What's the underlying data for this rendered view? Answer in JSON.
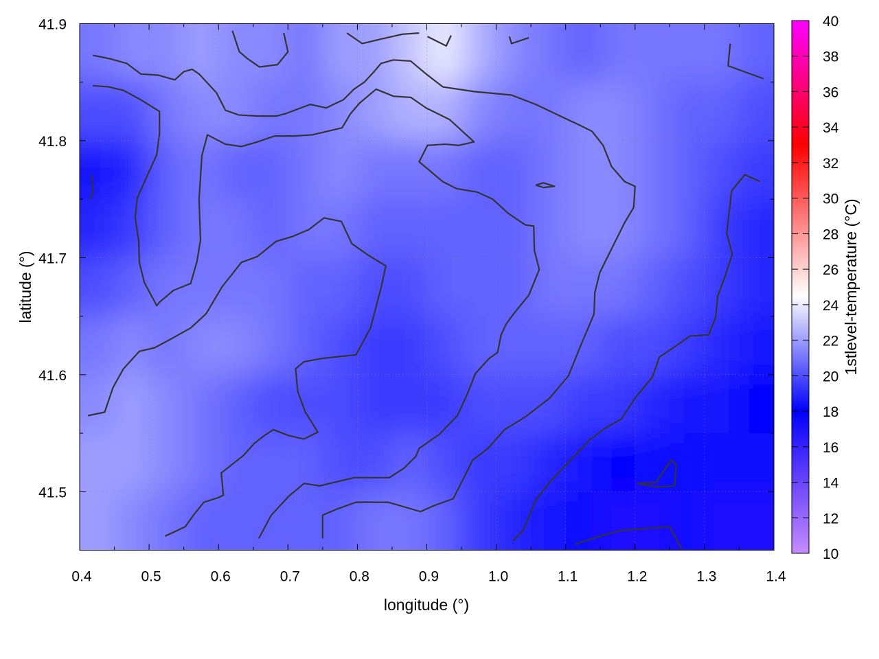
{
  "chart_data": {
    "type": "heatmap",
    "title": "",
    "xlabel": "longitude (°)",
    "ylabel": "latitude (°)",
    "colorbar_label": "1stlevel-temperature (°C)",
    "xlim": [
      0.4,
      1.4
    ],
    "ylim": [
      41.45,
      41.9
    ],
    "zlim": [
      10,
      40
    ],
    "x_ticks": [
      "0.4",
      "0.5",
      "0.6",
      "0.7",
      "0.8",
      "0.9",
      "1.0",
      "1.1",
      "1.2",
      "1.3",
      "1.4"
    ],
    "y_ticks": [
      "41.5",
      "41.6",
      "41.7",
      "41.8",
      "41.9"
    ],
    "colorbar_ticks": [
      "10",
      "12",
      "14",
      "16",
      "18",
      "20",
      "22",
      "24",
      "26",
      "28",
      "30",
      "32",
      "34",
      "36",
      "38",
      "40"
    ],
    "grid": true,
    "palette": [
      {
        "value": 10,
        "color": "#c68cff"
      },
      {
        "value": 14,
        "color": "#6a45ff"
      },
      {
        "value": 18,
        "color": "#0000ff"
      },
      {
        "value": 24.5,
        "color": "#ffffff"
      },
      {
        "value": 33,
        "color": "#ff0000"
      },
      {
        "value": 40,
        "color": "#ff00ff"
      }
    ],
    "grid_lon": [
      0.425,
      0.475,
      0.525,
      0.575,
      0.625,
      0.675,
      0.725,
      0.775,
      0.825,
      0.875,
      0.925,
      0.975,
      1.025,
      1.075,
      1.125,
      1.175,
      1.225,
      1.275,
      1.325,
      1.375
    ],
    "grid_lat": [
      41.875,
      41.825,
      41.775,
      41.725,
      41.675,
      41.625,
      41.575,
      41.525,
      41.475
    ],
    "values": [
      [
        21,
        21.5,
        21.5,
        22,
        21.5,
        21.5,
        21,
        22,
        22,
        23,
        24,
        22.5,
        21.5,
        21,
        20.5,
        21,
        21,
        21,
        21,
        20.5
      ],
      [
        20,
        20,
        21,
        21.5,
        21.5,
        21,
        21,
        21.5,
        22,
        22.5,
        22.5,
        21.5,
        21,
        21,
        21.5,
        21.5,
        21,
        20.5,
        20.5,
        20
      ],
      [
        18.5,
        19,
        20.5,
        21,
        20.5,
        20.5,
        21,
        21.5,
        21,
        21,
        21,
        20.5,
        20.5,
        21,
        21.5,
        21.5,
        21,
        20.5,
        20,
        19.5
      ],
      [
        19,
        19.5,
        20.5,
        21,
        21,
        20.5,
        21,
        21,
        20.5,
        20.5,
        20.5,
        20.5,
        20.5,
        21,
        21.5,
        21.5,
        21,
        20.5,
        19.5,
        19
      ],
      [
        20,
        20.5,
        21,
        21,
        21,
        21,
        20.5,
        20.5,
        20,
        20,
        20.5,
        20.5,
        20.5,
        21,
        21,
        21,
        20.5,
        20,
        19.5,
        19
      ],
      [
        21,
        21.5,
        21,
        21.5,
        21.5,
        21,
        20.5,
        20,
        19.5,
        19.5,
        20,
        20.5,
        20.5,
        20.5,
        20.5,
        20,
        20,
        19.5,
        19,
        18.5
      ],
      [
        21.5,
        22,
        21.5,
        21,
        20.5,
        20,
        20,
        20,
        19.5,
        19.5,
        19.5,
        20,
        20,
        20,
        19.5,
        19.5,
        19,
        18.5,
        18.5,
        18
      ],
      [
        22,
        22,
        21.5,
        21,
        20.5,
        20.5,
        20.5,
        20,
        20,
        20.5,
        20,
        19.5,
        19.5,
        19,
        18.5,
        18,
        17.5,
        17.5,
        17.5,
        17.5
      ],
      [
        22,
        21.5,
        21,
        20.5,
        20.5,
        20.5,
        20.5,
        20.5,
        21,
        21,
        20.5,
        19.5,
        19,
        18.5,
        17.5,
        17,
        17,
        17.5,
        17,
        17
      ]
    ],
    "contour_color": "#333333",
    "contours": [
      [
        [
          0.419,
          41.873
        ],
        [
          0.444,
          41.87
        ],
        [
          0.468,
          41.866
        ],
        [
          0.488,
          41.857
        ],
        [
          0.513,
          41.856
        ],
        [
          0.537,
          41.852
        ],
        [
          0.55,
          41.859
        ],
        [
          0.562,
          41.861
        ],
        [
          0.572,
          41.857
        ],
        [
          0.597,
          41.841
        ],
        [
          0.61,
          41.826
        ],
        [
          0.629,
          41.822
        ],
        [
          0.656,
          41.821
        ],
        [
          0.683,
          41.821
        ],
        [
          0.696,
          41.823
        ],
        [
          0.732,
          41.831
        ],
        [
          0.755,
          41.828
        ],
        [
          0.78,
          41.835
        ],
        [
          0.795,
          41.844
        ],
        [
          0.81,
          41.85
        ],
        [
          0.824,
          41.859
        ],
        [
          0.834,
          41.866
        ],
        [
          0.852,
          41.869
        ],
        [
          0.877,
          41.868
        ],
        [
          0.899,
          41.857
        ],
        [
          0.923,
          41.846
        ],
        [
          0.968,
          41.842
        ],
        [
          1.022,
          41.839
        ],
        [
          1.057,
          41.831
        ],
        [
          1.096,
          41.82
        ],
        [
          1.121,
          41.813
        ],
        [
          1.138,
          41.808
        ],
        [
          1.154,
          41.796
        ],
        [
          1.166,
          41.778
        ],
        [
          1.185,
          41.765
        ],
        [
          1.2,
          41.761
        ],
        [
          1.198,
          41.743
        ],
        [
          1.185,
          41.73
        ],
        [
          1.164,
          41.705
        ],
        [
          1.149,
          41.687
        ],
        [
          1.142,
          41.67
        ],
        [
          1.141,
          41.652
        ],
        [
          1.121,
          41.624
        ],
        [
          1.104,
          41.599
        ],
        [
          1.077,
          41.58
        ],
        [
          1.042,
          41.564
        ],
        [
          1.012,
          41.553
        ],
        [
          0.988,
          41.537
        ],
        [
          0.966,
          41.527
        ],
        [
          0.956,
          41.515
        ],
        [
          0.938,
          41.494
        ],
        [
          0.91,
          41.488
        ],
        [
          0.891,
          41.483
        ],
        [
          0.844,
          41.491
        ],
        [
          0.798,
          41.491
        ],
        [
          0.77,
          41.485
        ],
        [
          0.75,
          41.48
        ],
        [
          0.75,
          41.46
        ]
      ],
      [
        [
          0.419,
          41.847
        ],
        [
          0.442,
          41.846
        ],
        [
          0.463,
          41.843
        ],
        [
          0.488,
          41.835
        ],
        [
          0.515,
          41.825
        ],
        [
          0.515,
          41.806
        ],
        [
          0.511,
          41.788
        ],
        [
          0.498,
          41.771
        ],
        [
          0.483,
          41.751
        ],
        [
          0.48,
          41.734
        ],
        [
          0.485,
          41.715
        ],
        [
          0.486,
          41.696
        ],
        [
          0.493,
          41.679
        ],
        [
          0.511,
          41.659
        ],
        [
          0.515,
          41.662
        ],
        [
          0.535,
          41.672
        ],
        [
          0.56,
          41.678
        ],
        [
          0.569,
          41.697
        ],
        [
          0.574,
          41.715
        ],
        [
          0.572,
          41.75
        ],
        [
          0.576,
          41.787
        ],
        [
          0.584,
          41.805
        ],
        [
          0.61,
          41.797
        ],
        [
          0.633,
          41.795
        ],
        [
          0.656,
          41.799
        ],
        [
          0.681,
          41.804
        ],
        [
          0.709,
          41.804
        ],
        [
          0.735,
          41.805
        ],
        [
          0.778,
          41.811
        ],
        [
          0.79,
          41.823
        ],
        [
          0.803,
          41.832
        ],
        [
          0.827,
          41.844
        ],
        [
          0.852,
          41.838
        ],
        [
          0.877,
          41.837
        ],
        [
          0.899,
          41.828
        ],
        [
          0.933,
          41.818
        ],
        [
          0.968,
          41.799
        ],
        [
          0.946,
          41.796
        ],
        [
          0.926,
          41.797
        ],
        [
          0.901,
          41.796
        ],
        [
          0.889,
          41.782
        ],
        [
          0.923,
          41.765
        ],
        [
          0.943,
          41.759
        ],
        [
          0.973,
          41.756
        ],
        [
          0.995,
          41.75
        ],
        [
          1.017,
          41.738
        ],
        [
          1.042,
          41.728
        ],
        [
          1.054,
          41.727
        ],
        [
          1.055,
          41.706
        ],
        [
          1.062,
          41.69
        ],
        [
          1.047,
          41.668
        ],
        [
          1.025,
          41.652
        ],
        [
          1.014,
          41.643
        ],
        [
          1.007,
          41.634
        ],
        [
          1.002,
          41.619
        ],
        [
          0.99,
          41.614
        ],
        [
          0.97,
          41.601
        ],
        [
          0.958,
          41.583
        ],
        [
          0.944,
          41.565
        ],
        [
          0.918,
          41.549
        ],
        [
          0.889,
          41.537
        ],
        [
          0.884,
          41.53
        ],
        [
          0.867,
          41.52
        ],
        [
          0.846,
          41.512
        ],
        [
          0.795,
          41.512
        ],
        [
          0.746,
          41.505
        ],
        [
          0.723,
          41.507
        ],
        [
          0.701,
          41.496
        ],
        [
          0.676,
          41.48
        ],
        [
          0.658,
          41.46
        ]
      ],
      [
        [
          0.412,
          41.565
        ],
        [
          0.436,
          41.568
        ],
        [
          0.448,
          41.589
        ],
        [
          0.463,
          41.605
        ],
        [
          0.486,
          41.62
        ],
        [
          0.508,
          41.623
        ],
        [
          0.533,
          41.631
        ],
        [
          0.56,
          41.64
        ],
        [
          0.582,
          41.652
        ],
        [
          0.605,
          41.675
        ],
        [
          0.633,
          41.696
        ],
        [
          0.656,
          41.701
        ],
        [
          0.683,
          41.714
        ],
        [
          0.706,
          41.718
        ],
        [
          0.73,
          41.724
        ],
        [
          0.752,
          41.734
        ],
        [
          0.777,
          41.731
        ],
        [
          0.792,
          41.712
        ],
        [
          0.816,
          41.702
        ],
        [
          0.841,
          41.693
        ],
        [
          0.834,
          41.674
        ],
        [
          0.819,
          41.64
        ],
        [
          0.798,
          41.617
        ],
        [
          0.75,
          41.614
        ],
        [
          0.723,
          41.611
        ],
        [
          0.711,
          41.605
        ],
        [
          0.714,
          41.586
        ],
        [
          0.725,
          41.568
        ],
        [
          0.743,
          41.551
        ],
        [
          0.723,
          41.545
        ],
        [
          0.701,
          41.548
        ],
        [
          0.679,
          41.553
        ],
        [
          0.666,
          41.548
        ],
        [
          0.651,
          41.541
        ],
        [
          0.636,
          41.531
        ],
        [
          0.604,
          41.516
        ],
        [
          0.607,
          41.497
        ],
        [
          0.6,
          41.495
        ],
        [
          0.579,
          41.491
        ],
        [
          0.564,
          41.48
        ],
        [
          0.552,
          41.47
        ],
        [
          0.523,
          41.462
        ]
      ],
      [
        [
          1.38,
          41.765
        ],
        [
          1.358,
          41.771
        ],
        [
          1.339,
          41.757
        ],
        [
          1.332,
          41.721
        ],
        [
          1.34,
          41.703
        ],
        [
          1.329,
          41.683
        ],
        [
          1.319,
          41.667
        ],
        [
          1.316,
          41.649
        ],
        [
          1.306,
          41.634
        ],
        [
          1.279,
          41.633
        ],
        [
          1.255,
          41.623
        ],
        [
          1.235,
          41.615
        ],
        [
          1.225,
          41.598
        ],
        [
          1.2,
          41.58
        ],
        [
          1.18,
          41.562
        ],
        [
          1.156,
          41.554
        ],
        [
          1.134,
          41.544
        ],
        [
          1.104,
          41.525
        ],
        [
          1.077,
          41.508
        ],
        [
          1.057,
          41.493
        ],
        [
          1.039,
          41.467
        ],
        [
          1.024,
          41.458
        ]
      ],
      [
        [
          0.62,
          41.894
        ],
        [
          0.63,
          41.876
        ],
        [
          0.642,
          41.87
        ],
        [
          0.659,
          41.863
        ],
        [
          0.685,
          41.865
        ],
        [
          0.7,
          41.876
        ],
        [
          0.694,
          41.892
        ]
      ],
      [
        [
          0.785,
          41.892
        ],
        [
          0.807,
          41.883
        ],
        [
          0.835,
          41.887
        ],
        [
          0.865,
          41.891
        ],
        [
          0.889,
          41.892
        ]
      ],
      [
        [
          0.901,
          41.889
        ],
        [
          0.928,
          41.881
        ],
        [
          0.935,
          41.89
        ]
      ],
      [
        [
          1.019,
          41.889
        ],
        [
          1.022,
          41.883
        ],
        [
          1.047,
          41.888
        ]
      ],
      [
        [
          1.337,
          41.883
        ],
        [
          1.334,
          41.864
        ],
        [
          1.385,
          41.853
        ]
      ],
      [
        [
          0.417,
          41.771
        ],
        [
          0.419,
          41.756
        ],
        [
          0.415,
          41.75
        ]
      ],
      [
        [
          1.057,
          41.762
        ],
        [
          1.068,
          41.764
        ],
        [
          1.084,
          41.761
        ],
        [
          1.068,
          41.76
        ],
        [
          1.057,
          41.762
        ]
      ],
      [
        [
          1.203,
          41.507
        ],
        [
          1.23,
          41.508
        ],
        [
          1.252,
          41.527
        ],
        [
          1.259,
          41.523
        ],
        [
          1.257,
          41.505
        ],
        [
          1.232,
          41.504
        ],
        [
          1.203,
          41.507
        ]
      ],
      [
        [
          1.113,
          41.455
        ],
        [
          1.155,
          41.463
        ],
        [
          1.18,
          41.467
        ],
        [
          1.25,
          41.47
        ],
        [
          1.267,
          41.451
        ]
      ]
    ]
  }
}
